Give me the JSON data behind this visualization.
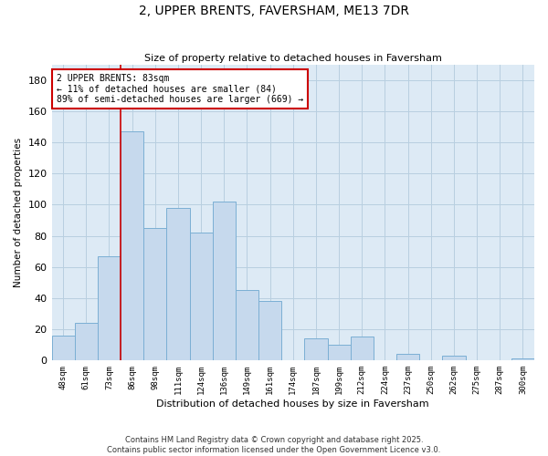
{
  "title": "2, UPPER BRENTS, FAVERSHAM, ME13 7DR",
  "subtitle": "Size of property relative to detached houses in Faversham",
  "xlabel": "Distribution of detached houses by size in Faversham",
  "ylabel": "Number of detached properties",
  "bin_labels": [
    "48sqm",
    "61sqm",
    "73sqm",
    "86sqm",
    "98sqm",
    "111sqm",
    "124sqm",
    "136sqm",
    "149sqm",
    "161sqm",
    "174sqm",
    "187sqm",
    "199sqm",
    "212sqm",
    "224sqm",
    "237sqm",
    "250sqm",
    "262sqm",
    "275sqm",
    "287sqm",
    "300sqm"
  ],
  "bar_values": [
    16,
    24,
    67,
    147,
    85,
    98,
    82,
    102,
    45,
    38,
    0,
    14,
    10,
    15,
    0,
    4,
    0,
    3,
    0,
    0,
    1
  ],
  "bar_color": "#c6d9ed",
  "bar_edge_color": "#7bafd4",
  "vline_x_bin": 3,
  "vline_color": "#cc0000",
  "annotation_title": "2 UPPER BRENTS: 83sqm",
  "annotation_line1": "← 11% of detached houses are smaller (84)",
  "annotation_line2": "89% of semi-detached houses are larger (669) →",
  "ylim": [
    0,
    190
  ],
  "yticks": [
    0,
    20,
    40,
    60,
    80,
    100,
    120,
    140,
    160,
    180
  ],
  "footer_line1": "Contains HM Land Registry data © Crown copyright and database right 2025.",
  "footer_line2": "Contains public sector information licensed under the Open Government Licence v3.0.",
  "background_color": "#ffffff",
  "plot_bg_color": "#ddeaf5",
  "grid_color": "#b8cfe0"
}
